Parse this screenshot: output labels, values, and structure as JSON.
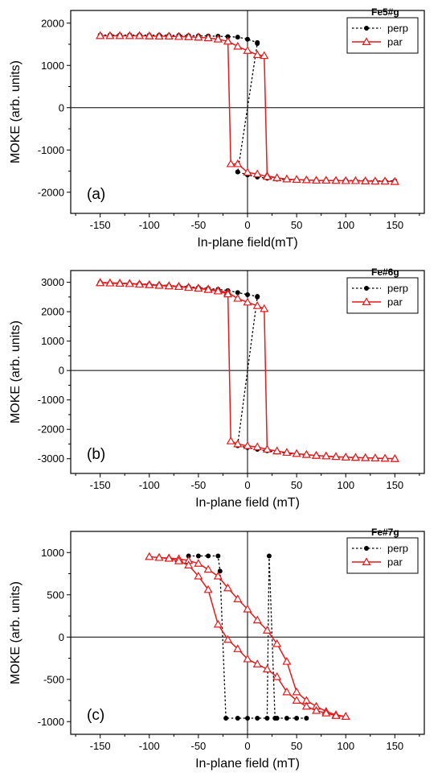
{
  "chart_data": [
    {
      "type": "line",
      "panel_label": "(a)",
      "legend_title": "Fe5#g",
      "xlabel": "In-plane field(mT)",
      "ylabel": "MOKE (arb. units)",
      "xlim": [
        -180,
        180
      ],
      "ylim": [
        -2500,
        2300
      ],
      "xticks": [
        -150,
        -100,
        -50,
        0,
        50,
        100,
        150
      ],
      "yticks": [
        -2000,
        -1000,
        0,
        1000,
        2000
      ],
      "legend_position": "top-right",
      "series": [
        {
          "name": "perp",
          "style": "dotted",
          "marker": "filled-circle",
          "color": "#000000",
          "x": [
            -150,
            -140,
            -130,
            -120,
            -110,
            -100,
            -90,
            -80,
            -70,
            -60,
            -50,
            -40,
            -30,
            -20,
            -10,
            0,
            10,
            10,
            -10,
            -10,
            0,
            10,
            20,
            30,
            40,
            50,
            60,
            70,
            80,
            90,
            100,
            110,
            120,
            130,
            140,
            150
          ],
          "y": [
            1720,
            1720,
            1720,
            1720,
            1720,
            1715,
            1715,
            1710,
            1710,
            1705,
            1700,
            1695,
            1690,
            1680,
            1670,
            1620,
            1540,
            1520,
            -1520,
            -1520,
            -1590,
            -1640,
            -1670,
            -1690,
            -1700,
            -1710,
            -1710,
            -1720,
            -1720,
            -1720,
            -1720,
            -1725,
            -1725,
            -1730,
            -1730,
            -1730
          ]
        },
        {
          "name": "par",
          "style": "solid",
          "marker": "open-triangle",
          "color": "#e41a1c",
          "x": [
            -150,
            -140,
            -130,
            -120,
            -110,
            -100,
            -90,
            -80,
            -70,
            -60,
            -50,
            -40,
            -30,
            -20,
            -10,
            0,
            10,
            17,
            20,
            30,
            40,
            50,
            60,
            70,
            80,
            90,
            100,
            110,
            120,
            130,
            140,
            150,
            150,
            140,
            130,
            120,
            110,
            100,
            90,
            80,
            70,
            60,
            50,
            40,
            30,
            20,
            10,
            0,
            -10,
            -17,
            -20,
            -30,
            -40,
            -50,
            -60,
            -70,
            -80,
            -90,
            -100,
            -110,
            -120,
            -130,
            -140,
            -150
          ],
          "y": [
            1700,
            1700,
            1700,
            1700,
            1700,
            1695,
            1690,
            1690,
            1680,
            1675,
            1665,
            1650,
            1620,
            1570,
            1450,
            1350,
            1250,
            1230,
            -1610,
            -1660,
            -1690,
            -1700,
            -1710,
            -1720,
            -1720,
            -1725,
            -1730,
            -1730,
            -1735,
            -1740,
            -1740,
            -1750,
            -1750,
            -1740,
            -1740,
            -1735,
            -1730,
            -1730,
            -1725,
            -1720,
            -1720,
            -1710,
            -1700,
            -1690,
            -1660,
            -1630,
            -1570,
            -1530,
            -1330,
            -1330,
            1570,
            1620,
            1650,
            1665,
            1675,
            1680,
            1690,
            1690,
            1695,
            1700,
            1700,
            1700,
            1700,
            1700
          ]
        }
      ]
    },
    {
      "type": "line",
      "panel_label": "(b)",
      "legend_title": "Fe#6g",
      "xlabel": "In-plane field (mT)",
      "ylabel": "MOKE (arb. units)",
      "xlim": [
        -180,
        180
      ],
      "ylim": [
        -3500,
        3400
      ],
      "xticks": [
        -150,
        -100,
        -50,
        0,
        50,
        100,
        150
      ],
      "yticks": [
        -3000,
        -2000,
        -1000,
        0,
        1000,
        2000,
        3000
      ],
      "legend_position": "top-right",
      "series": [
        {
          "name": "perp",
          "style": "dotted",
          "marker": "filled-circle",
          "color": "#000000",
          "x": [
            -150,
            -140,
            -130,
            -120,
            -110,
            -100,
            -90,
            -80,
            -70,
            -60,
            -50,
            -40,
            -30,
            -20,
            -10,
            0,
            10,
            10,
            -10,
            -10,
            0,
            10,
            20,
            30,
            40,
            50,
            60,
            70,
            80,
            90,
            100,
            110,
            120,
            130,
            140,
            150
          ],
          "y": [
            3000,
            2980,
            2970,
            2960,
            2950,
            2930,
            2910,
            2890,
            2870,
            2850,
            2820,
            2790,
            2760,
            2720,
            2650,
            2580,
            2520,
            2500,
            -2520,
            -2560,
            -2620,
            -2680,
            -2730,
            -2770,
            -2810,
            -2850,
            -2870,
            -2890,
            -2920,
            -2940,
            -2950,
            -2960,
            -2970,
            -2980,
            -2990,
            -3000
          ]
        },
        {
          "name": "par",
          "style": "solid",
          "marker": "open-triangle",
          "color": "#e41a1c",
          "x": [
            -150,
            -140,
            -130,
            -120,
            -110,
            -100,
            -90,
            -80,
            -70,
            -60,
            -50,
            -40,
            -30,
            -20,
            -10,
            0,
            10,
            17,
            20,
            30,
            40,
            50,
            60,
            70,
            80,
            90,
            100,
            110,
            120,
            130,
            140,
            150,
            150,
            140,
            130,
            120,
            110,
            100,
            90,
            80,
            70,
            60,
            50,
            40,
            30,
            20,
            10,
            0,
            -10,
            -17,
            -20,
            -30,
            -40,
            -50,
            -60,
            -70,
            -80,
            -90,
            -100,
            -110,
            -120,
            -130,
            -140,
            -150
          ],
          "y": [
            2990,
            2980,
            2970,
            2960,
            2940,
            2920,
            2900,
            2880,
            2860,
            2830,
            2800,
            2770,
            2720,
            2650,
            2450,
            2320,
            2200,
            2100,
            -2680,
            -2740,
            -2790,
            -2830,
            -2860,
            -2890,
            -2910,
            -2930,
            -2950,
            -2960,
            -2970,
            -2980,
            -2990,
            -3000,
            -3000,
            -2990,
            -2980,
            -2970,
            -2960,
            -2950,
            -2930,
            -2910,
            -2890,
            -2860,
            -2830,
            -2790,
            -2740,
            -2680,
            -2600,
            -2560,
            -2500,
            -2400,
            2600,
            2700,
            2750,
            2790,
            2820,
            2850,
            2870,
            2890,
            2910,
            2930,
            2950,
            2960,
            2970,
            2980
          ]
        }
      ]
    },
    {
      "type": "line",
      "panel_label": "(c)",
      "legend_title": "Fe#7g",
      "xlabel": "In-plane field (mT)",
      "ylabel": "MOKE (arb. units)",
      "xlim": [
        -180,
        180
      ],
      "ylim": [
        -1150,
        1250
      ],
      "xticks": [
        -150,
        -100,
        -50,
        0,
        50,
        100,
        150
      ],
      "yticks": [
        -1000,
        -500,
        0,
        500,
        1000
      ],
      "legend_position": "top-right",
      "series": [
        {
          "name": "perp",
          "style": "dotted",
          "marker": "filled-circle",
          "color": "#000000",
          "x": [
            -60,
            -50,
            -40,
            -30,
            -28,
            -22,
            -10,
            0,
            10,
            20,
            22,
            28,
            30,
            40,
            50,
            60
          ],
          "y": [
            960,
            960,
            960,
            960,
            780,
            -960,
            -960,
            -960,
            -960,
            -960,
            960,
            -960,
            -960,
            -960,
            -960,
            -960
          ]
        },
        {
          "name": "par",
          "style": "solid",
          "marker": "open-triangle",
          "color": "#e41a1c",
          "x": [
            -100,
            -90,
            -80,
            -70,
            -60,
            -50,
            -40,
            -30,
            -20,
            -10,
            0,
            10,
            20,
            30,
            40,
            50,
            60,
            70,
            80,
            90,
            100,
            100,
            90,
            80,
            70,
            60,
            50,
            40,
            30,
            20,
            10,
            0,
            -10,
            -20,
            -30,
            -40,
            -50,
            -60,
            -70,
            -80,
            -90,
            -100
          ],
          "y": [
            950,
            940,
            935,
            925,
            905,
            870,
            800,
            720,
            580,
            450,
            330,
            200,
            80,
            -80,
            -290,
            -650,
            -750,
            -820,
            -880,
            -920,
            -940,
            -940,
            -930,
            -900,
            -870,
            -820,
            -750,
            -650,
            -470,
            -380,
            -320,
            -260,
            -140,
            -30,
            150,
            560,
            720,
            850,
            900,
            930,
            940,
            950
          ]
        }
      ]
    }
  ]
}
